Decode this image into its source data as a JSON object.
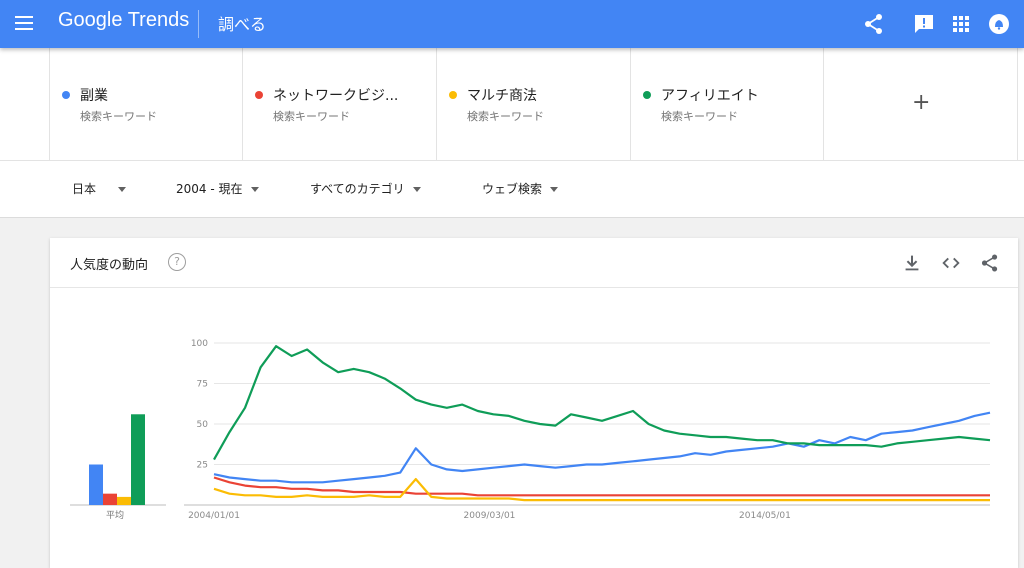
{
  "header": {
    "logo": "Google Trends",
    "page_title": "調べる",
    "color": "#4285f4",
    "icons": [
      "menu-icon",
      "share-icon",
      "feedback-icon",
      "apps-icon",
      "account-icon"
    ]
  },
  "terms": [
    {
      "name": "副業",
      "sub": "検索キーワード",
      "color": "#4285f4"
    },
    {
      "name": "ネットワークビジ...",
      "sub": "検索キーワード",
      "color": "#ea4335"
    },
    {
      "name": "マルチ商法",
      "sub": "検索キーワード",
      "color": "#fbbc04"
    },
    {
      "name": "アフィリエイト",
      "sub": "検索キーワード",
      "color": "#0f9d58"
    }
  ],
  "add_term": "+",
  "filters": {
    "region": "日本",
    "period": "2004 - 現在",
    "category": "すべてのカテゴリ",
    "search_type": "ウェブ検索"
  },
  "card": {
    "title": "人気度の動向",
    "help": "?",
    "icons": [
      "download-icon",
      "embed-icon",
      "share-icon"
    ]
  },
  "chart_data": {
    "type": "line",
    "ylim": [
      0,
      100
    ],
    "yticks": [
      "100",
      "75",
      "50",
      "25"
    ],
    "x_labels": [
      "2004/01/01",
      "2009/03/01",
      "2014/05/01"
    ],
    "average": {
      "label": "平均",
      "values": [
        25,
        7,
        5,
        56
      ]
    },
    "series": [
      {
        "name": "副業",
        "color": "#4285f4",
        "values": [
          19,
          17,
          16,
          15,
          15,
          14,
          14,
          14,
          15,
          16,
          17,
          18,
          20,
          35,
          25,
          22,
          21,
          22,
          23,
          24,
          25,
          24,
          23,
          24,
          25,
          25,
          26,
          27,
          28,
          29,
          30,
          32,
          31,
          33,
          34,
          35,
          36,
          38,
          36,
          40,
          38,
          42,
          40,
          44,
          45,
          46,
          48,
          50,
          52,
          55,
          57
        ]
      },
      {
        "name": "ネットワークビジ...",
        "color": "#ea4335",
        "values": [
          17,
          14,
          12,
          11,
          11,
          10,
          10,
          9,
          9,
          8,
          8,
          8,
          8,
          7,
          7,
          7,
          7,
          6,
          6,
          6,
          6,
          6,
          6,
          6,
          6,
          6,
          6,
          6,
          6,
          6,
          6,
          6,
          6,
          6,
          6,
          6,
          6,
          6,
          6,
          6,
          6,
          6,
          6,
          6,
          6,
          6,
          6,
          6,
          6,
          6,
          6
        ]
      },
      {
        "name": "マルチ商法",
        "color": "#fbbc04",
        "values": [
          10,
          7,
          6,
          6,
          5,
          5,
          6,
          5,
          5,
          5,
          6,
          5,
          5,
          16,
          5,
          4,
          4,
          4,
          4,
          4,
          3,
          3,
          3,
          3,
          3,
          3,
          3,
          3,
          3,
          3,
          3,
          3,
          3,
          3,
          3,
          3,
          3,
          3,
          3,
          3,
          3,
          3,
          3,
          3,
          3,
          3,
          3,
          3,
          3,
          3,
          3
        ]
      },
      {
        "name": "アフィリエイト",
        "color": "#0f9d58",
        "values": [
          28,
          45,
          60,
          85,
          98,
          92,
          96,
          88,
          82,
          84,
          82,
          78,
          72,
          65,
          62,
          60,
          62,
          58,
          56,
          55,
          52,
          50,
          49,
          56,
          54,
          52,
          55,
          58,
          50,
          46,
          44,
          43,
          42,
          42,
          41,
          40,
          40,
          38,
          38,
          37,
          37,
          37,
          37,
          36,
          38,
          39,
          40,
          41,
          42,
          41,
          40
        ]
      }
    ]
  }
}
